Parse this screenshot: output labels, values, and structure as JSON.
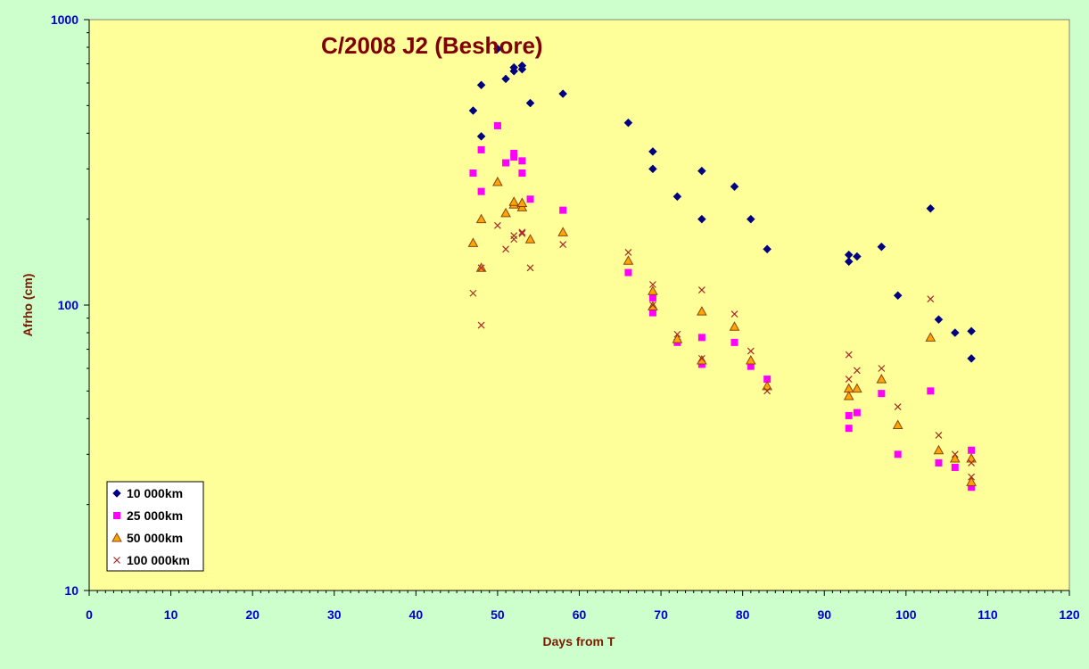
{
  "chart_data": {
    "type": "scatter",
    "title": "C/2008 J2 (Beshore)",
    "xlabel": "Days from T",
    "ylabel": "Afrho (cm)",
    "xlim": [
      0,
      120
    ],
    "ylim": [
      10,
      1000
    ],
    "yscale": "log",
    "x_ticks": [
      "0",
      "10",
      "20",
      "30",
      "40",
      "50",
      "60",
      "70",
      "80",
      "90",
      "100",
      "110",
      "120"
    ],
    "y_ticks": [
      "10",
      "100",
      "1000"
    ],
    "grid": false,
    "legend_position": "bottom-left",
    "background_color": "#ffff99",
    "outer_color": "#ccffcc",
    "series": [
      {
        "name": "10 000km",
        "marker": "diamond",
        "color": "#000080",
        "points": [
          [
            47,
            480
          ],
          [
            48,
            390
          ],
          [
            48,
            590
          ],
          [
            50,
            790
          ],
          [
            51,
            620
          ],
          [
            52,
            680
          ],
          [
            52,
            660
          ],
          [
            53,
            690
          ],
          [
            53,
            670
          ],
          [
            54,
            510
          ],
          [
            58,
            550
          ],
          [
            66,
            435
          ],
          [
            69,
            345
          ],
          [
            69,
            300
          ],
          [
            72,
            240
          ],
          [
            75,
            295
          ],
          [
            75,
            200
          ],
          [
            79,
            260
          ],
          [
            81,
            200
          ],
          [
            83,
            157
          ],
          [
            93,
            150
          ],
          [
            93,
            142
          ],
          [
            94,
            148
          ],
          [
            97,
            160
          ],
          [
            99,
            108
          ],
          [
            103,
            218
          ],
          [
            104,
            89
          ],
          [
            106,
            80
          ],
          [
            108,
            81
          ],
          [
            108,
            65
          ]
        ]
      },
      {
        "name": "25 000km",
        "marker": "square",
        "color": "#ff00ff",
        "points": [
          [
            47,
            290
          ],
          [
            48,
            250
          ],
          [
            48,
            350
          ],
          [
            50,
            425
          ],
          [
            51,
            315
          ],
          [
            52,
            340
          ],
          [
            52,
            330
          ],
          [
            53,
            320
          ],
          [
            53,
            290
          ],
          [
            54,
            235
          ],
          [
            58,
            215
          ],
          [
            66,
            130
          ],
          [
            69,
            106
          ],
          [
            69,
            94
          ],
          [
            72,
            74
          ],
          [
            75,
            77
          ],
          [
            75,
            62
          ],
          [
            79,
            74
          ],
          [
            81,
            61
          ],
          [
            83,
            55
          ],
          [
            93,
            41
          ],
          [
            93,
            37
          ],
          [
            94,
            42
          ],
          [
            97,
            49
          ],
          [
            99,
            30
          ],
          [
            103,
            50
          ],
          [
            104,
            28
          ],
          [
            106,
            27
          ],
          [
            108,
            31
          ],
          [
            108,
            23
          ]
        ]
      },
      {
        "name": "50 000km",
        "marker": "triangle",
        "color": "#ffa500",
        "points": [
          [
            47,
            165
          ],
          [
            48,
            200
          ],
          [
            48,
            135
          ],
          [
            50,
            270
          ],
          [
            51,
            210
          ],
          [
            52,
            225
          ],
          [
            52,
            230
          ],
          [
            53,
            220
          ],
          [
            53,
            228
          ],
          [
            54,
            170
          ],
          [
            58,
            180
          ],
          [
            66,
            143
          ],
          [
            69,
            112
          ],
          [
            69,
            99
          ],
          [
            72,
            76
          ],
          [
            75,
            95
          ],
          [
            75,
            64
          ],
          [
            79,
            84
          ],
          [
            81,
            64
          ],
          [
            83,
            52
          ],
          [
            93,
            51
          ],
          [
            93,
            48
          ],
          [
            94,
            51
          ],
          [
            97,
            55
          ],
          [
            99,
            38
          ],
          [
            103,
            77
          ],
          [
            104,
            31
          ],
          [
            106,
            29
          ],
          [
            108,
            29
          ],
          [
            108,
            24
          ]
        ]
      },
      {
        "name": "100 000km",
        "marker": "x",
        "color": "#a52a2a",
        "points": [
          [
            47,
            110
          ],
          [
            48,
            85
          ],
          [
            48,
            135
          ],
          [
            50,
            190
          ],
          [
            51,
            157
          ],
          [
            52,
            175
          ],
          [
            52,
            170
          ],
          [
            53,
            180
          ],
          [
            53,
            178
          ],
          [
            54,
            135
          ],
          [
            58,
            163
          ],
          [
            66,
            153
          ],
          [
            69,
            118
          ],
          [
            69,
            100
          ],
          [
            72,
            79
          ],
          [
            75,
            113
          ],
          [
            75,
            65
          ],
          [
            79,
            93
          ],
          [
            81,
            69
          ],
          [
            83,
            50
          ],
          [
            93,
            67
          ],
          [
            93,
            55
          ],
          [
            94,
            59
          ],
          [
            97,
            60
          ],
          [
            99,
            44
          ],
          [
            103,
            105
          ],
          [
            104,
            35
          ],
          [
            106,
            30
          ],
          [
            108,
            28
          ],
          [
            108,
            25
          ]
        ]
      }
    ]
  }
}
